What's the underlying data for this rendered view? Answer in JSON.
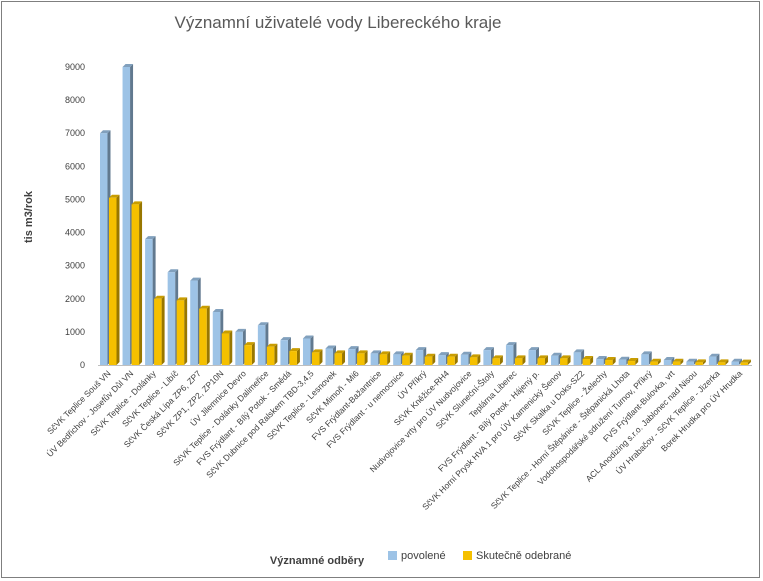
{
  "chart_data": {
    "type": "bar",
    "title": "Významní uživatelé vody Libereckého kraje",
    "xlabel": "Významné odběry",
    "ylabel": "tis m3/rok",
    "ylim": [
      0,
      9000
    ],
    "yticks": [
      0,
      1000,
      2000,
      3000,
      4000,
      5000,
      6000,
      7000,
      8000,
      9000
    ],
    "grid": false,
    "legend_position": "bottom",
    "categories": [
      "SčVK Teplice Souš VN",
      "ÚV Bedřichov - Josefův Důl VN",
      "SčVK Teplice - Dolánky",
      "SčVK Teplice - Libíč",
      "SčVK Česká Lípa ZP6, ZP7",
      "SčVK ZP1, ZP2, ZP10N",
      "ÚV Jilemnice Devro",
      "SčVK Teplice - Dolánky Dalimeřice",
      "FVS Frýdlant - Bílý Potok - Smědá",
      "SčVK Dubnice pod Ralskem TBD-3,4,5",
      "SčVK Teplice - Lesnovek",
      "SčVK Mimoň - Mi6",
      "FVS Frýdlant-Bažantnice",
      "FVS Frýdlant - u nemocnice",
      "ÚV Příkrý",
      "SčVK Kněžice-RH4",
      "Nudvojovice vrty pro ÚV Nudvojovice",
      "SčVK Sluneční-Štoly",
      "Teplárna Liberec",
      "FVS Frýdlant - Bílý Potok - Hájený p.",
      "SčVK Horní Prysk HVA 1 pro ÚV Kamenický Šenov",
      "SčVK Skalka u Doks-SZ2",
      "SčVK Teplice - Želechy",
      "SčVK Teplice - Horní Štěpánice - Štěpanická Lhota",
      "Vodohospodářské sdružení Turnov, Příkrý",
      "FVS Frýdlant-Bulovka, vrt",
      "ACL Anodizing s.r.o. Jablonec nad Nisou",
      "ÚV Hrabačov - SčVK Teplice - Jizerka",
      "Borek Hrudka pro ÚV Hrudka"
    ],
    "series": [
      {
        "name": "povolené",
        "color": "#9dc3e6",
        "values": [
          7000,
          9000,
          3800,
          2800,
          2550,
          1600,
          1000,
          1200,
          750,
          800,
          500,
          480,
          350,
          320,
          450,
          300,
          310,
          450,
          600,
          450,
          280,
          380,
          180,
          160,
          320,
          150,
          100,
          250,
          100
        ]
      },
      {
        "name": "Skutečně odebrané",
        "color": "#f5c000",
        "values": [
          5050,
          4850,
          2000,
          1950,
          1700,
          950,
          600,
          550,
          420,
          380,
          350,
          350,
          320,
          280,
          250,
          250,
          230,
          200,
          200,
          200,
          200,
          180,
          150,
          120,
          100,
          100,
          80,
          80,
          70
        ]
      }
    ]
  }
}
